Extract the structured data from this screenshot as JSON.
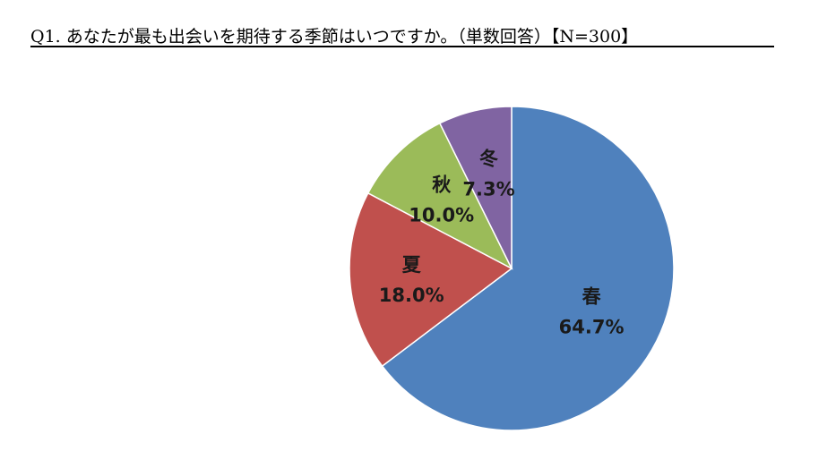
{
  "question": {
    "title": "Q1. あなたが最も出会いを期待する季節はいつですか。（単数回答）【N=300】"
  },
  "chart_data": {
    "type": "pie",
    "title": "Q1. あなたが最も出会いを期待する季節はいつですか。（単数回答）【N=300】",
    "slices": [
      {
        "label": "春",
        "value": 64.7,
        "value_label": "64.7%",
        "color": "#4F81BD"
      },
      {
        "label": "夏",
        "value": 18.0,
        "value_label": "18.0%",
        "color": "#C0504D"
      },
      {
        "label": "秋",
        "value": 10.0,
        "value_label": "10.0%",
        "color": "#9BBB59"
      },
      {
        "label": "冬",
        "value": 7.3,
        "value_label": "7.3%",
        "color": "#8064A2"
      }
    ],
    "start_angle": "12 o'clock",
    "direction": "clockwise",
    "legend": "none"
  }
}
